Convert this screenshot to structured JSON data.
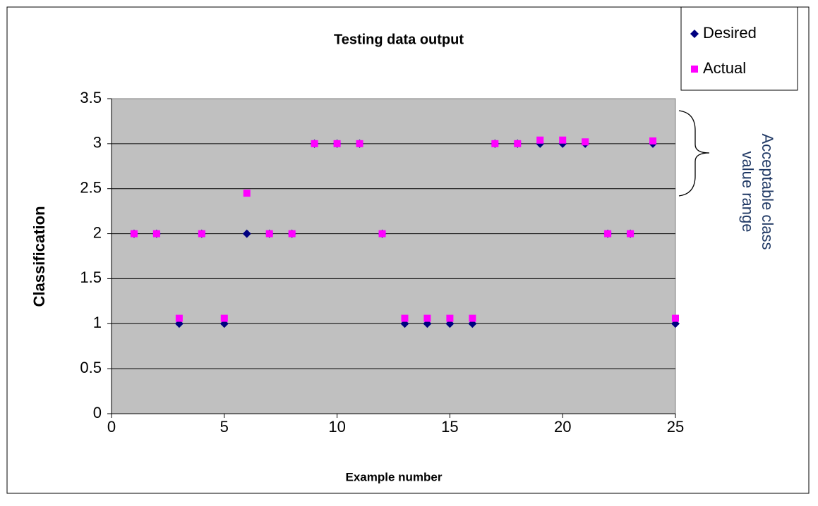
{
  "chart_data": {
    "type": "scatter",
    "title": "Testing data output",
    "xlabel": "Example number",
    "ylabel": "Classification",
    "x": [
      1,
      2,
      3,
      4,
      5,
      6,
      7,
      8,
      9,
      10,
      11,
      12,
      13,
      14,
      15,
      16,
      17,
      18,
      19,
      20,
      21,
      22,
      23,
      24,
      25
    ],
    "series": [
      {
        "name": "Desired",
        "color": "#000080",
        "marker": "diamond",
        "values": [
          2,
          2,
          1,
          2,
          1,
          2,
          2,
          2,
          3,
          3,
          3,
          2,
          1,
          1,
          1,
          1,
          3,
          3,
          3,
          3,
          3,
          2,
          2,
          3,
          1
        ]
      },
      {
        "name": "Actual",
        "color": "#ff00ff",
        "marker": "square",
        "values": [
          2,
          2,
          1.06,
          2,
          1.06,
          2.45,
          2,
          2,
          3,
          3,
          3,
          2,
          1.06,
          1.06,
          1.06,
          1.06,
          3,
          3,
          3.04,
          3.04,
          3.02,
          2,
          2,
          3.03,
          1.06
        ]
      }
    ],
    "xlim": [
      0,
      25
    ],
    "xticks": [
      0,
      5,
      10,
      15,
      20,
      25
    ],
    "ylim": [
      0,
      3.5
    ],
    "yticks": [
      0,
      0.5,
      1,
      1.5,
      2,
      2.5,
      3,
      3.5
    ],
    "grid": true,
    "legend": "upper right",
    "annotation": [
      "Acceptable class",
      "value range"
    ]
  }
}
